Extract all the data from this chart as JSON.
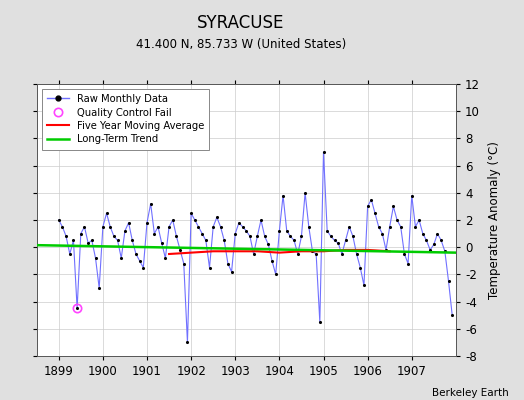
{
  "title": "SYRACUSE",
  "subtitle": "41.400 N, 85.733 W (United States)",
  "credit": "Berkeley Earth",
  "ylabel": "Temperature Anomaly (°C)",
  "xlabel_years": [
    "1899",
    "1900",
    "1901",
    "1902",
    "1903",
    "1904",
    "1905",
    "1906",
    "1907"
  ],
  "ylim": [
    -8,
    12
  ],
  "yticks": [
    -8,
    -6,
    -4,
    -2,
    0,
    2,
    4,
    6,
    8,
    10,
    12
  ],
  "xlim_start": 1898.5,
  "xlim_end": 1908.0,
  "bg_color": "#e0e0e0",
  "plot_bg_color": "#ffffff",
  "raw_line_color": "#7070ff",
  "raw_marker_color": "#000000",
  "five_year_color": "#ff0000",
  "trend_color": "#00cc00",
  "qc_fail_color": "#ff44ff",
  "raw_data_x": [
    1899.0,
    1899.0833,
    1899.1667,
    1899.25,
    1899.3333,
    1899.4167,
    1899.5,
    1899.5833,
    1899.6667,
    1899.75,
    1899.8333,
    1899.9167,
    1900.0,
    1900.0833,
    1900.1667,
    1900.25,
    1900.3333,
    1900.4167,
    1900.5,
    1900.5833,
    1900.6667,
    1900.75,
    1900.8333,
    1900.9167,
    1901.0,
    1901.0833,
    1901.1667,
    1901.25,
    1901.3333,
    1901.4167,
    1901.5,
    1901.5833,
    1901.6667,
    1901.75,
    1901.8333,
    1901.9167,
    1902.0,
    1902.0833,
    1902.1667,
    1902.25,
    1902.3333,
    1902.4167,
    1902.5,
    1902.5833,
    1902.6667,
    1902.75,
    1902.8333,
    1902.9167,
    1903.0,
    1903.0833,
    1903.1667,
    1903.25,
    1903.3333,
    1903.4167,
    1903.5,
    1903.5833,
    1903.6667,
    1903.75,
    1903.8333,
    1903.9167,
    1904.0,
    1904.0833,
    1904.1667,
    1904.25,
    1904.3333,
    1904.4167,
    1904.5,
    1904.5833,
    1904.6667,
    1904.75,
    1904.8333,
    1904.9167,
    1905.0,
    1905.0833,
    1905.1667,
    1905.25,
    1905.3333,
    1905.4167,
    1905.5,
    1905.5833,
    1905.6667,
    1905.75,
    1905.8333,
    1905.9167,
    1906.0,
    1906.0833,
    1906.1667,
    1906.25,
    1906.3333,
    1906.4167,
    1906.5,
    1906.5833,
    1906.6667,
    1906.75,
    1906.8333,
    1906.9167,
    1907.0,
    1907.0833,
    1907.1667,
    1907.25,
    1907.3333,
    1907.4167,
    1907.5,
    1907.5833,
    1907.6667,
    1907.75,
    1907.8333,
    1907.9167
  ],
  "raw_data_y": [
    2.0,
    1.5,
    0.8,
    -0.5,
    0.5,
    -4.5,
    1.0,
    1.5,
    0.3,
    0.5,
    -0.8,
    -3.0,
    1.5,
    2.5,
    1.5,
    0.8,
    0.5,
    -0.8,
    1.2,
    1.8,
    0.5,
    -0.5,
    -1.0,
    -1.5,
    1.8,
    3.2,
    1.0,
    1.5,
    0.3,
    -0.8,
    1.5,
    2.0,
    0.8,
    -0.2,
    -1.2,
    -7.0,
    2.5,
    2.0,
    1.5,
    1.0,
    0.5,
    -1.5,
    1.5,
    2.2,
    1.5,
    0.5,
    -1.2,
    -1.8,
    1.0,
    1.8,
    1.5,
    1.2,
    0.8,
    -0.5,
    0.8,
    2.0,
    0.8,
    0.2,
    -1.0,
    -2.0,
    1.2,
    3.8,
    1.2,
    0.8,
    0.5,
    -0.5,
    0.8,
    4.0,
    1.5,
    -0.3,
    -0.5,
    -5.5,
    7.0,
    1.2,
    0.8,
    0.5,
    0.3,
    -0.5,
    0.5,
    1.5,
    0.8,
    -0.5,
    -1.5,
    -2.8,
    3.0,
    3.5,
    2.5,
    1.5,
    1.0,
    -0.2,
    1.5,
    3.0,
    2.0,
    1.5,
    -0.5,
    -1.2,
    3.8,
    1.5,
    2.0,
    1.0,
    0.5,
    -0.2,
    0.2,
    1.0,
    0.5,
    -0.3,
    -2.5,
    -5.0
  ],
  "qc_fail_x": 1899.4167,
  "qc_fail_y": -4.5,
  "five_year_x": [
    1901.5,
    1902.0,
    1902.5,
    1903.0,
    1903.5,
    1904.0,
    1904.5,
    1905.0,
    1905.5,
    1906.0,
    1906.5
  ],
  "five_year_y": [
    -0.5,
    -0.4,
    -0.3,
    -0.3,
    -0.3,
    -0.4,
    -0.3,
    -0.3,
    -0.2,
    -0.2,
    -0.3
  ],
  "trend_x": [
    1898.5,
    1908.0
  ],
  "trend_y": [
    0.15,
    -0.4
  ]
}
